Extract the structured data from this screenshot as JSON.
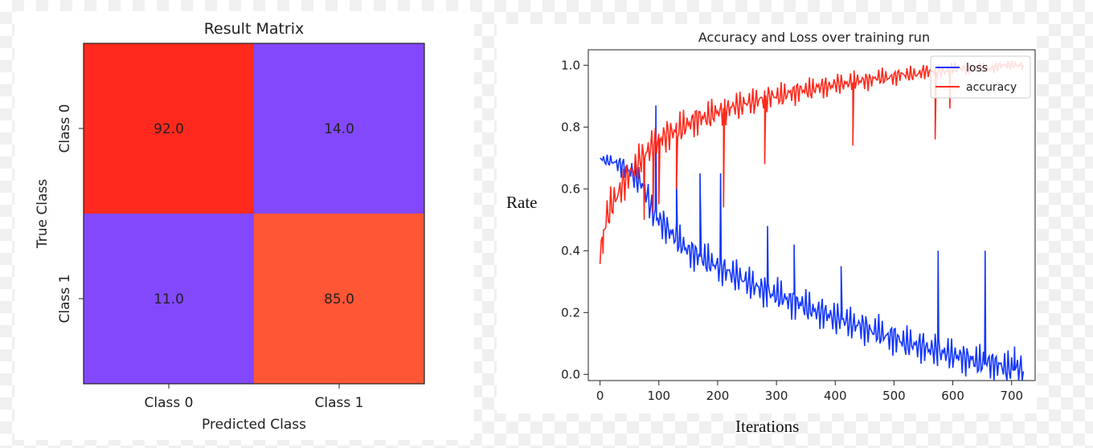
{
  "chart_data": [
    {
      "type": "heatmap",
      "title": "Result Matrix",
      "xlabel": "Predicted Class",
      "ylabel": "True Class",
      "x_categories": [
        "Class 0",
        "Class 1"
      ],
      "y_categories": [
        "Class 0",
        "Class 1"
      ],
      "cells": [
        {
          "true": "Class 0",
          "predicted": "Class 0",
          "value": 92.0,
          "label": "92.0",
          "color": "#ff2a1d"
        },
        {
          "true": "Class 0",
          "predicted": "Class 1",
          "value": 14.0,
          "label": "14.0",
          "color": "#8348fc"
        },
        {
          "true": "Class 1",
          "predicted": "Class 0",
          "value": 11.0,
          "label": "11.0",
          "color": "#8348fc"
        },
        {
          "true": "Class 1",
          "predicted": "Class 1",
          "value": 85.0,
          "label": "85.0",
          "color": "#ff5636"
        }
      ],
      "grid": false
    },
    {
      "type": "line",
      "title": "Accuracy and Loss over training run",
      "xlabel": "Iterations",
      "ylabel": "Rate",
      "xlim": [
        -20,
        740
      ],
      "ylim": [
        -0.02,
        1.05
      ],
      "xticks": [
        "0",
        "100",
        "200",
        "300",
        "400",
        "500",
        "600",
        "700"
      ],
      "yticks": [
        "0.0",
        "0.2",
        "0.4",
        "0.6",
        "0.8",
        "1.0"
      ],
      "legend_position": "top-right",
      "grid": false,
      "series": [
        {
          "name": "loss",
          "color": "#1236ff",
          "x": [
            0,
            10,
            20,
            30,
            40,
            50,
            60,
            70,
            80,
            90,
            100,
            110,
            120,
            130,
            140,
            150,
            160,
            170,
            180,
            190,
            200,
            210,
            220,
            230,
            240,
            250,
            260,
            270,
            280,
            290,
            300,
            310,
            320,
            330,
            340,
            350,
            360,
            370,
            380,
            390,
            400,
            410,
            420,
            430,
            440,
            450,
            460,
            470,
            480,
            490,
            500,
            510,
            520,
            530,
            540,
            550,
            560,
            570,
            580,
            590,
            600,
            610,
            620,
            630,
            640,
            650,
            660,
            670,
            680,
            690,
            700,
            710,
            720
          ],
          "values": [
            0.7,
            0.69,
            0.69,
            0.68,
            0.67,
            0.66,
            0.64,
            0.62,
            0.58,
            0.52,
            0.5,
            0.48,
            0.46,
            0.44,
            0.42,
            0.4,
            0.39,
            0.38,
            0.37,
            0.36,
            0.35,
            0.34,
            0.33,
            0.32,
            0.31,
            0.3,
            0.29,
            0.28,
            0.27,
            0.26,
            0.26,
            0.25,
            0.24,
            0.23,
            0.23,
            0.22,
            0.21,
            0.2,
            0.2,
            0.19,
            0.18,
            0.18,
            0.17,
            0.16,
            0.16,
            0.15,
            0.14,
            0.14,
            0.13,
            0.12,
            0.12,
            0.11,
            0.1,
            0.1,
            0.09,
            0.09,
            0.08,
            0.08,
            0.07,
            0.07,
            0.06,
            0.06,
            0.05,
            0.05,
            0.04,
            0.04,
            0.04,
            0.03,
            0.03,
            0.02,
            0.02,
            0.02,
            0.01
          ],
          "spikes": [
            [
              95,
              0.87
            ],
            [
              130,
              0.65
            ],
            [
              170,
              0.65
            ],
            [
              205,
              0.65
            ],
            [
              285,
              0.48
            ],
            [
              330,
              0.42
            ],
            [
              410,
              0.35
            ],
            [
              575,
              0.4
            ],
            [
              655,
              0.4
            ],
            [
              705,
              0.09
            ]
          ]
        },
        {
          "name": "accuracy",
          "color": "#ff2a1d",
          "x": [
            0,
            10,
            20,
            30,
            40,
            50,
            60,
            70,
            80,
            90,
            100,
            110,
            120,
            130,
            140,
            150,
            160,
            170,
            180,
            190,
            200,
            210,
            220,
            230,
            240,
            250,
            260,
            270,
            280,
            290,
            300,
            310,
            320,
            330,
            340,
            350,
            360,
            370,
            380,
            390,
            400,
            410,
            420,
            430,
            440,
            450,
            460,
            470,
            480,
            490,
            500,
            510,
            520,
            530,
            540,
            550,
            560,
            570,
            580,
            590,
            600,
            610,
            620,
            630,
            640,
            650,
            660,
            670,
            680,
            690,
            700,
            710,
            720
          ],
          "values": [
            0.4,
            0.5,
            0.55,
            0.58,
            0.62,
            0.65,
            0.67,
            0.7,
            0.72,
            0.74,
            0.76,
            0.77,
            0.78,
            0.79,
            0.8,
            0.81,
            0.82,
            0.83,
            0.83,
            0.84,
            0.85,
            0.85,
            0.86,
            0.87,
            0.87,
            0.88,
            0.88,
            0.89,
            0.89,
            0.9,
            0.9,
            0.9,
            0.91,
            0.91,
            0.92,
            0.92,
            0.92,
            0.93,
            0.93,
            0.93,
            0.94,
            0.94,
            0.94,
            0.95,
            0.95,
            0.95,
            0.95,
            0.96,
            0.96,
            0.96,
            0.96,
            0.97,
            0.97,
            0.97,
            0.97,
            0.98,
            0.98,
            0.98,
            0.98,
            0.98,
            0.99,
            0.99,
            0.99,
            0.99,
            0.99,
            0.99,
            0.99,
            0.99,
            1.0,
            1.0,
            1.0,
            1.0,
            1.0
          ],
          "spikes": [
            [
              5,
              0.39
            ],
            [
              75,
              0.5
            ],
            [
              90,
              0.52
            ],
            [
              100,
              0.55
            ],
            [
              130,
              0.6
            ],
            [
              210,
              0.54
            ],
            [
              280,
              0.68
            ],
            [
              430,
              0.74
            ],
            [
              570,
              0.76
            ],
            [
              595,
              0.86
            ]
          ]
        }
      ]
    }
  ]
}
